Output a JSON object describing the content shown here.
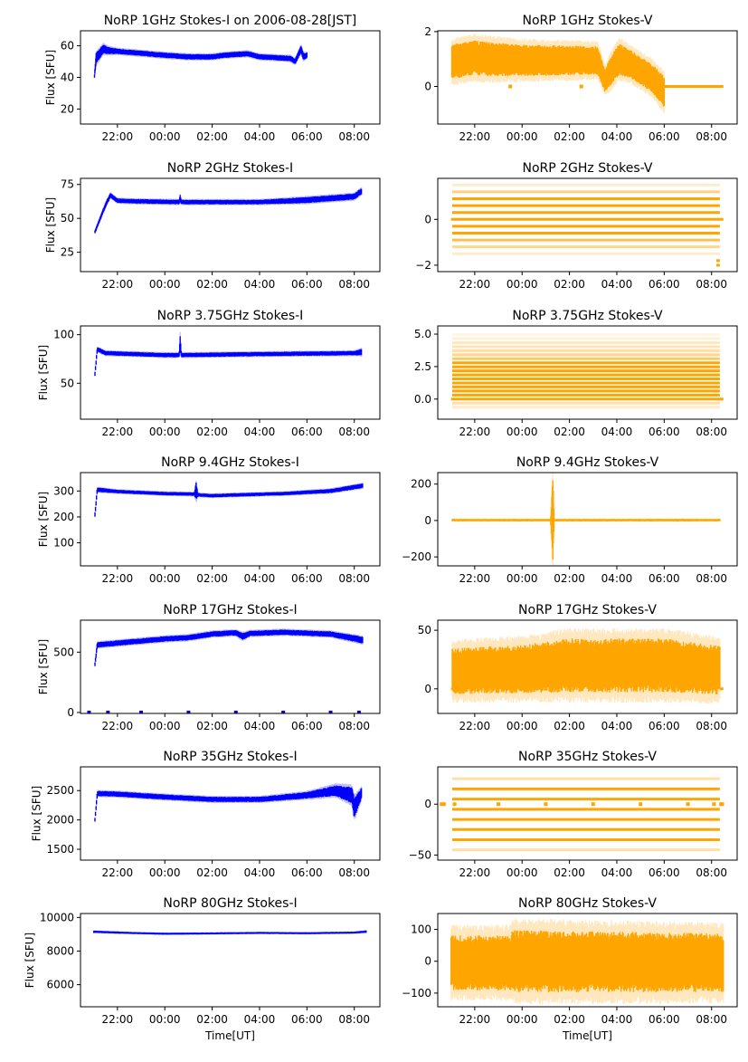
{
  "chart_data": {
    "type": "scatter",
    "layout": "7 rows x 2 columns",
    "x_axis": {
      "unit": "hours relative to 00:00 UT",
      "xlim": [
        -3.56,
        9.08
      ],
      "ticks": [
        -2,
        0,
        2,
        4,
        6,
        8
      ],
      "tick_labels": [
        "22:00",
        "00:00",
        "02:00",
        "04:00",
        "06:00",
        "08:00"
      ],
      "xlabel": "Time[UT]"
    },
    "colors": {
      "stokes_i": "#0000ff",
      "stokes_v": "#ffa500"
    },
    "panels": [
      {
        "title": "NoRP 1GHz Stokes-I on 2006-08-28[JST]",
        "ylabel": "Flux [SFU]",
        "series": "stokes_i",
        "ylim": [
          10.5,
          69.5
        ],
        "yticks": [
          20,
          40,
          60
        ],
        "ytick_labels": [
          "20",
          "40",
          "60"
        ],
        "trend": [
          [
            -2.97,
            41,
            1
          ],
          [
            -2.9,
            52,
            3
          ],
          [
            -2.6,
            58,
            2.5
          ],
          [
            -2.4,
            57,
            2
          ],
          [
            -2,
            56.5,
            1.5
          ],
          [
            0,
            54,
            1.5
          ],
          [
            1,
            53,
            1.5
          ],
          [
            2,
            53,
            1.5
          ],
          [
            2.5,
            54,
            1.5
          ],
          [
            3.5,
            55,
            1.5
          ],
          [
            4,
            53,
            1.5
          ],
          [
            5.3,
            52,
            1.5
          ],
          [
            5.5,
            50,
            1.5
          ],
          [
            5.75,
            58,
            2
          ],
          [
            5.85,
            53,
            2
          ],
          [
            6.0,
            54,
            1.5
          ]
        ]
      },
      {
        "title": "NoRP 1GHz Stokes-V",
        "ylabel": "",
        "series": "stokes_v",
        "ylim": [
          -1.37,
          2.03
        ],
        "yticks": [
          0,
          2
        ],
        "ytick_labels": [
          "0",
          "2"
        ],
        "trend": [
          [
            -2.97,
            0.9,
            0.55
          ],
          [
            -2,
            1.05,
            0.55
          ],
          [
            -1.5,
            1.0,
            0.55
          ],
          [
            0,
            0.95,
            0.5
          ],
          [
            3.2,
            0.95,
            0.45
          ],
          [
            3.5,
            0.2,
            0.35
          ],
          [
            3.7,
            0.5,
            0.45
          ],
          [
            4.1,
            1.0,
            0.5
          ],
          [
            4.6,
            0.8,
            0.45
          ],
          [
            5.5,
            0.3,
            0.45
          ],
          [
            6.0,
            -0.2,
            0.5
          ]
        ],
        "levels": [
          {
            "value": 0,
            "opacity": 1,
            "from": 6.0,
            "to": 8.5
          }
        ],
        "markers": [
          {
            "value": 0,
            "hours": [
              -0.5,
              2.5
            ]
          }
        ]
      },
      {
        "title": "NoRP 2GHz Stokes-I",
        "ylabel": "Flux [SFU]",
        "series": "stokes_i",
        "ylim": [
          10.7,
          79.5
        ],
        "yticks": [
          25,
          50,
          75
        ],
        "ytick_labels": [
          "25",
          "50",
          "75"
        ],
        "trend": [
          [
            -2.95,
            40,
            1
          ],
          [
            -2.5,
            60,
            1.5
          ],
          [
            -2.3,
            67,
            1.5
          ],
          [
            -2,
            63,
            1.5
          ],
          [
            -1,
            62.5,
            1.5
          ],
          [
            0.6,
            62,
            1.5
          ],
          [
            0.65,
            65,
            2
          ],
          [
            0.7,
            62,
            1.5
          ],
          [
            4,
            62,
            1.5
          ],
          [
            6,
            63.5,
            2
          ],
          [
            8,
            66,
            2
          ],
          [
            8.3,
            70,
            2
          ]
        ]
      },
      {
        "title": "NoRP 2GHz Stokes-V",
        "ylabel": "",
        "series": "stokes_v",
        "ylim": [
          -2.28,
          1.79
        ],
        "yticks": [
          -2,
          0
        ],
        "ytick_labels": [
          "−2",
          "0"
        ],
        "levels": [
          {
            "value": 1.5,
            "opacity": 0.2
          },
          {
            "value": 1.2,
            "opacity": 0.5
          },
          {
            "value": 0.9,
            "opacity": 1
          },
          {
            "value": 0.6,
            "opacity": 1
          },
          {
            "value": 0.3,
            "opacity": 1
          },
          {
            "value": 0,
            "opacity": 1,
            "from": -3.0,
            "to": 8.5
          },
          {
            "value": -0.3,
            "opacity": 1
          },
          {
            "value": -0.6,
            "opacity": 1
          },
          {
            "value": -0.9,
            "opacity": 0.7
          },
          {
            "value": -1.2,
            "opacity": 0.45
          },
          {
            "value": -1.5,
            "opacity": 0.2
          },
          {
            "value": -1.8,
            "opacity": 1,
            "from": 8.2,
            "to": 8.35
          },
          {
            "value": -2.0,
            "opacity": 1,
            "from": 8.2,
            "to": 8.35
          }
        ]
      },
      {
        "title": "NoRP 3.75GHz Stokes-I",
        "ylabel": "Flux [SFU]",
        "series": "stokes_i",
        "ylim": [
          13,
          109
        ],
        "yticks": [
          50,
          100
        ],
        "ytick_labels": [
          "50",
          "100"
        ],
        "trend": [
          [
            -2.95,
            60,
            2
          ],
          [
            -2.85,
            85,
            2
          ],
          [
            -2.5,
            81,
            2
          ],
          [
            0,
            79,
            2
          ],
          [
            0.6,
            79,
            2
          ],
          [
            0.65,
            92,
            7
          ],
          [
            0.7,
            79,
            2
          ],
          [
            4,
            80,
            2
          ],
          [
            8,
            81,
            2
          ],
          [
            8.3,
            82,
            3
          ]
        ]
      },
      {
        "title": "NoRP 3.75GHz Stokes-V",
        "ylabel": "",
        "series": "stokes_v",
        "ylim": [
          -1.55,
          5.63
        ],
        "yticks": [
          0,
          2.5,
          5
        ],
        "ytick_labels": [
          "0.0",
          "2.5",
          "5.0"
        ],
        "levels": [
          {
            "value": -0.62,
            "opacity": 0.2
          },
          {
            "value": -0.31,
            "opacity": 0.35
          },
          {
            "value": 0,
            "opacity": 1,
            "from": -3.0,
            "to": 8.5
          },
          {
            "value": 0.31,
            "opacity": 1
          },
          {
            "value": 0.62,
            "opacity": 1
          },
          {
            "value": 0.93,
            "opacity": 1
          },
          {
            "value": 1.24,
            "opacity": 1
          },
          {
            "value": 1.55,
            "opacity": 1
          },
          {
            "value": 1.86,
            "opacity": 1
          },
          {
            "value": 2.17,
            "opacity": 1
          },
          {
            "value": 2.48,
            "opacity": 1
          },
          {
            "value": 2.79,
            "opacity": 1
          },
          {
            "value": 3.1,
            "opacity": 0.6
          },
          {
            "value": 3.41,
            "opacity": 0.45
          },
          {
            "value": 3.72,
            "opacity": 0.35
          },
          {
            "value": 4.03,
            "opacity": 0.3
          },
          {
            "value": 4.34,
            "opacity": 0.25
          },
          {
            "value": 4.65,
            "opacity": 0.15
          },
          {
            "value": 4.96,
            "opacity": 0.1
          }
        ]
      },
      {
        "title": "NoRP 9.4GHz Stokes-I",
        "ylabel": "Flux [SFU]",
        "series": "stokes_i",
        "ylim": [
          11,
          371
        ],
        "yticks": [
          100,
          200,
          300
        ],
        "ytick_labels": [
          "100",
          "200",
          "300"
        ],
        "trend": [
          [
            -2.95,
            210,
            8
          ],
          [
            -2.85,
            305,
            8
          ],
          [
            -2,
            298,
            6
          ],
          [
            0,
            290,
            6
          ],
          [
            1.25,
            288,
            6
          ],
          [
            1.32,
            300,
            30
          ],
          [
            1.4,
            285,
            6
          ],
          [
            2,
            282,
            6
          ],
          [
            5,
            290,
            6
          ],
          [
            7,
            300,
            7
          ],
          [
            8.35,
            320,
            8
          ]
        ]
      },
      {
        "title": "NoRP 9.4GHz Stokes-V",
        "ylabel": "",
        "series": "stokes_v",
        "ylim": [
          -249,
          263
        ],
        "yticks": [
          -200,
          0,
          200
        ],
        "ytick_labels": [
          "−200",
          "0",
          "200"
        ],
        "trend": [
          [
            -2.95,
            2,
            6
          ],
          [
            1.2,
            2,
            6
          ],
          [
            1.3,
            0,
            220
          ],
          [
            1.36,
            2,
            6
          ],
          [
            8.35,
            2,
            6
          ]
        ]
      },
      {
        "title": "NoRP 17GHz Stokes-I",
        "ylabel": "Flux [SFU]",
        "series": "stokes_i",
        "ylim": [
          -8,
          765
        ],
        "yticks": [
          0,
          500
        ],
        "ytick_labels": [
          "0",
          "500"
        ],
        "trend": [
          [
            -2.95,
            400,
            15
          ],
          [
            -2.85,
            560,
            20
          ],
          [
            -2,
            575,
            20
          ],
          [
            0,
            610,
            20
          ],
          [
            1,
            620,
            20
          ],
          [
            2,
            650,
            20
          ],
          [
            3,
            660,
            20
          ],
          [
            3.3,
            630,
            25
          ],
          [
            3.6,
            655,
            20
          ],
          [
            5,
            665,
            20
          ],
          [
            7,
            650,
            20
          ],
          [
            8.35,
            600,
            25
          ]
        ],
        "markers": [
          {
            "value": 0,
            "hours": [
              -3.2,
              -2.4,
              -1,
              1,
              3,
              5,
              7,
              8.2
            ]
          }
        ]
      },
      {
        "title": "NoRP 17GHz Stokes-V",
        "ylabel": "",
        "series": "stokes_v",
        "ylim": [
          -21,
          58.6
        ],
        "yticks": [
          0,
          50
        ],
        "ytick_labels": [
          "0",
          "50"
        ],
        "trend": [
          [
            -2.95,
            15,
            17
          ],
          [
            0,
            17,
            18
          ],
          [
            2,
            20,
            20
          ],
          [
            6,
            20,
            20
          ],
          [
            8.35,
            16,
            18
          ]
        ],
        "levels": [
          {
            "value": 0,
            "opacity": 1,
            "from": -3.0,
            "to": -2.9
          },
          {
            "value": 0,
            "opacity": 1,
            "from": 8.35,
            "to": 8.5
          }
        ]
      },
      {
        "title": "NoRP 35GHz Stokes-I",
        "ylabel": "Flux [SFU]",
        "series": "stokes_i",
        "ylim": [
          1315,
          2905
        ],
        "yticks": [
          1500,
          2000,
          2500
        ],
        "ytick_labels": [
          "1500",
          "2000",
          "2500"
        ],
        "trend": [
          [
            -2.95,
            2000,
            30
          ],
          [
            -2.85,
            2450,
            40
          ],
          [
            -2,
            2440,
            40
          ],
          [
            0,
            2390,
            40
          ],
          [
            2,
            2350,
            40
          ],
          [
            4,
            2350,
            40
          ],
          [
            6,
            2420,
            50
          ],
          [
            7.2,
            2500,
            80
          ],
          [
            7.9,
            2420,
            120
          ],
          [
            8.0,
            2200,
            150
          ],
          [
            8.3,
            2450,
            80
          ]
        ]
      },
      {
        "title": "NoRP 35GHz Stokes-V",
        "ylabel": "",
        "series": "stokes_v",
        "ylim": [
          -55,
          36.7
        ],
        "yticks": [
          -50,
          0
        ],
        "ytick_labels": [
          "−50",
          "0"
        ],
        "levels": [
          {
            "value": 25,
            "opacity": 0.35
          },
          {
            "value": 15,
            "opacity": 1
          },
          {
            "value": 5,
            "opacity": 1
          },
          {
            "value": -5,
            "opacity": 1
          },
          {
            "value": -15,
            "opacity": 1
          },
          {
            "value": -25,
            "opacity": 1
          },
          {
            "value": -35,
            "opacity": 1
          },
          {
            "value": -45,
            "opacity": 0.35
          }
        ],
        "markers": [
          {
            "value": 0,
            "hours": [
              -3.4,
              -3.3,
              -2.85,
              -1,
              1,
              3,
              5,
              7,
              8.1,
              8.4,
              8.45
            ]
          }
        ]
      },
      {
        "title": "NoRP 80GHz Stokes-I",
        "ylabel": "Flux [SFU]",
        "series": "stokes_i",
        "ylim": [
          4685,
          10234
        ],
        "yticks": [
          6000,
          8000,
          10000
        ],
        "ytick_labels": [
          "6000",
          "8000",
          "10000"
        ],
        "trend": [
          [
            -3.0,
            9150,
            60
          ],
          [
            -1.5,
            9080,
            50
          ],
          [
            0,
            9030,
            50
          ],
          [
            2,
            9050,
            50
          ],
          [
            4,
            9080,
            50
          ],
          [
            6,
            9060,
            50
          ],
          [
            8,
            9100,
            50
          ],
          [
            8.5,
            9160,
            60
          ]
        ]
      },
      {
        "title": "NoRP 80GHz Stokes-V",
        "ylabel": "",
        "series": "stokes_v",
        "ylim": [
          -143,
          150
        ],
        "yticks": [
          -100,
          0,
          100
        ],
        "ytick_labels": [
          "−100",
          "0",
          "100"
        ],
        "trend": [
          [
            -3,
            -5,
            75
          ],
          [
            -0.5,
            -5,
            75
          ],
          [
            -0.4,
            0,
            85
          ],
          [
            8.5,
            -5,
            80
          ]
        ]
      }
    ]
  }
}
